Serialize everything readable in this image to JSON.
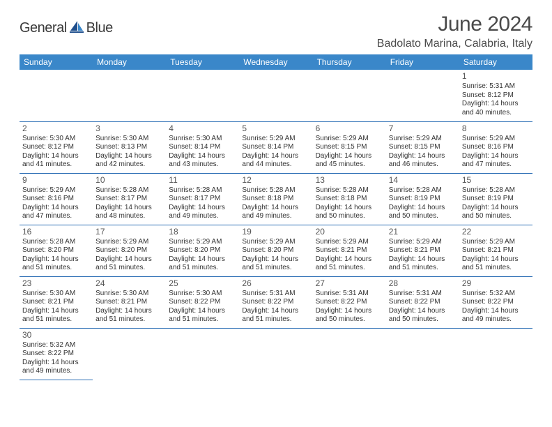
{
  "logo": {
    "text1": "General",
    "text2": "Blue"
  },
  "title": "June 2024",
  "location": "Badolato Marina, Calabria, Italy",
  "colors": {
    "header_bg": "#3a87c9",
    "header_fg": "#ffffff",
    "border": "#2a6db4",
    "text": "#333333",
    "title": "#4a4a4a"
  },
  "weekdays": [
    "Sunday",
    "Monday",
    "Tuesday",
    "Wednesday",
    "Thursday",
    "Friday",
    "Saturday"
  ],
  "weeks": [
    [
      null,
      null,
      null,
      null,
      null,
      null,
      {
        "d": "1",
        "sr": "Sunrise: 5:31 AM",
        "ss": "Sunset: 8:12 PM",
        "dl1": "Daylight: 14 hours",
        "dl2": "and 40 minutes."
      }
    ],
    [
      {
        "d": "2",
        "sr": "Sunrise: 5:30 AM",
        "ss": "Sunset: 8:12 PM",
        "dl1": "Daylight: 14 hours",
        "dl2": "and 41 minutes."
      },
      {
        "d": "3",
        "sr": "Sunrise: 5:30 AM",
        "ss": "Sunset: 8:13 PM",
        "dl1": "Daylight: 14 hours",
        "dl2": "and 42 minutes."
      },
      {
        "d": "4",
        "sr": "Sunrise: 5:30 AM",
        "ss": "Sunset: 8:14 PM",
        "dl1": "Daylight: 14 hours",
        "dl2": "and 43 minutes."
      },
      {
        "d": "5",
        "sr": "Sunrise: 5:29 AM",
        "ss": "Sunset: 8:14 PM",
        "dl1": "Daylight: 14 hours",
        "dl2": "and 44 minutes."
      },
      {
        "d": "6",
        "sr": "Sunrise: 5:29 AM",
        "ss": "Sunset: 8:15 PM",
        "dl1": "Daylight: 14 hours",
        "dl2": "and 45 minutes."
      },
      {
        "d": "7",
        "sr": "Sunrise: 5:29 AM",
        "ss": "Sunset: 8:15 PM",
        "dl1": "Daylight: 14 hours",
        "dl2": "and 46 minutes."
      },
      {
        "d": "8",
        "sr": "Sunrise: 5:29 AM",
        "ss": "Sunset: 8:16 PM",
        "dl1": "Daylight: 14 hours",
        "dl2": "and 47 minutes."
      }
    ],
    [
      {
        "d": "9",
        "sr": "Sunrise: 5:29 AM",
        "ss": "Sunset: 8:16 PM",
        "dl1": "Daylight: 14 hours",
        "dl2": "and 47 minutes."
      },
      {
        "d": "10",
        "sr": "Sunrise: 5:28 AM",
        "ss": "Sunset: 8:17 PM",
        "dl1": "Daylight: 14 hours",
        "dl2": "and 48 minutes."
      },
      {
        "d": "11",
        "sr": "Sunrise: 5:28 AM",
        "ss": "Sunset: 8:17 PM",
        "dl1": "Daylight: 14 hours",
        "dl2": "and 49 minutes."
      },
      {
        "d": "12",
        "sr": "Sunrise: 5:28 AM",
        "ss": "Sunset: 8:18 PM",
        "dl1": "Daylight: 14 hours",
        "dl2": "and 49 minutes."
      },
      {
        "d": "13",
        "sr": "Sunrise: 5:28 AM",
        "ss": "Sunset: 8:18 PM",
        "dl1": "Daylight: 14 hours",
        "dl2": "and 50 minutes."
      },
      {
        "d": "14",
        "sr": "Sunrise: 5:28 AM",
        "ss": "Sunset: 8:19 PM",
        "dl1": "Daylight: 14 hours",
        "dl2": "and 50 minutes."
      },
      {
        "d": "15",
        "sr": "Sunrise: 5:28 AM",
        "ss": "Sunset: 8:19 PM",
        "dl1": "Daylight: 14 hours",
        "dl2": "and 50 minutes."
      }
    ],
    [
      {
        "d": "16",
        "sr": "Sunrise: 5:28 AM",
        "ss": "Sunset: 8:20 PM",
        "dl1": "Daylight: 14 hours",
        "dl2": "and 51 minutes."
      },
      {
        "d": "17",
        "sr": "Sunrise: 5:29 AM",
        "ss": "Sunset: 8:20 PM",
        "dl1": "Daylight: 14 hours",
        "dl2": "and 51 minutes."
      },
      {
        "d": "18",
        "sr": "Sunrise: 5:29 AM",
        "ss": "Sunset: 8:20 PM",
        "dl1": "Daylight: 14 hours",
        "dl2": "and 51 minutes."
      },
      {
        "d": "19",
        "sr": "Sunrise: 5:29 AM",
        "ss": "Sunset: 8:20 PM",
        "dl1": "Daylight: 14 hours",
        "dl2": "and 51 minutes."
      },
      {
        "d": "20",
        "sr": "Sunrise: 5:29 AM",
        "ss": "Sunset: 8:21 PM",
        "dl1": "Daylight: 14 hours",
        "dl2": "and 51 minutes."
      },
      {
        "d": "21",
        "sr": "Sunrise: 5:29 AM",
        "ss": "Sunset: 8:21 PM",
        "dl1": "Daylight: 14 hours",
        "dl2": "and 51 minutes."
      },
      {
        "d": "22",
        "sr": "Sunrise: 5:29 AM",
        "ss": "Sunset: 8:21 PM",
        "dl1": "Daylight: 14 hours",
        "dl2": "and 51 minutes."
      }
    ],
    [
      {
        "d": "23",
        "sr": "Sunrise: 5:30 AM",
        "ss": "Sunset: 8:21 PM",
        "dl1": "Daylight: 14 hours",
        "dl2": "and 51 minutes."
      },
      {
        "d": "24",
        "sr": "Sunrise: 5:30 AM",
        "ss": "Sunset: 8:21 PM",
        "dl1": "Daylight: 14 hours",
        "dl2": "and 51 minutes."
      },
      {
        "d": "25",
        "sr": "Sunrise: 5:30 AM",
        "ss": "Sunset: 8:22 PM",
        "dl1": "Daylight: 14 hours",
        "dl2": "and 51 minutes."
      },
      {
        "d": "26",
        "sr": "Sunrise: 5:31 AM",
        "ss": "Sunset: 8:22 PM",
        "dl1": "Daylight: 14 hours",
        "dl2": "and 51 minutes."
      },
      {
        "d": "27",
        "sr": "Sunrise: 5:31 AM",
        "ss": "Sunset: 8:22 PM",
        "dl1": "Daylight: 14 hours",
        "dl2": "and 50 minutes."
      },
      {
        "d": "28",
        "sr": "Sunrise: 5:31 AM",
        "ss": "Sunset: 8:22 PM",
        "dl1": "Daylight: 14 hours",
        "dl2": "and 50 minutes."
      },
      {
        "d": "29",
        "sr": "Sunrise: 5:32 AM",
        "ss": "Sunset: 8:22 PM",
        "dl1": "Daylight: 14 hours",
        "dl2": "and 49 minutes."
      }
    ],
    [
      {
        "d": "30",
        "sr": "Sunrise: 5:32 AM",
        "ss": "Sunset: 8:22 PM",
        "dl1": "Daylight: 14 hours",
        "dl2": "and 49 minutes."
      },
      null,
      null,
      null,
      null,
      null,
      null
    ]
  ]
}
